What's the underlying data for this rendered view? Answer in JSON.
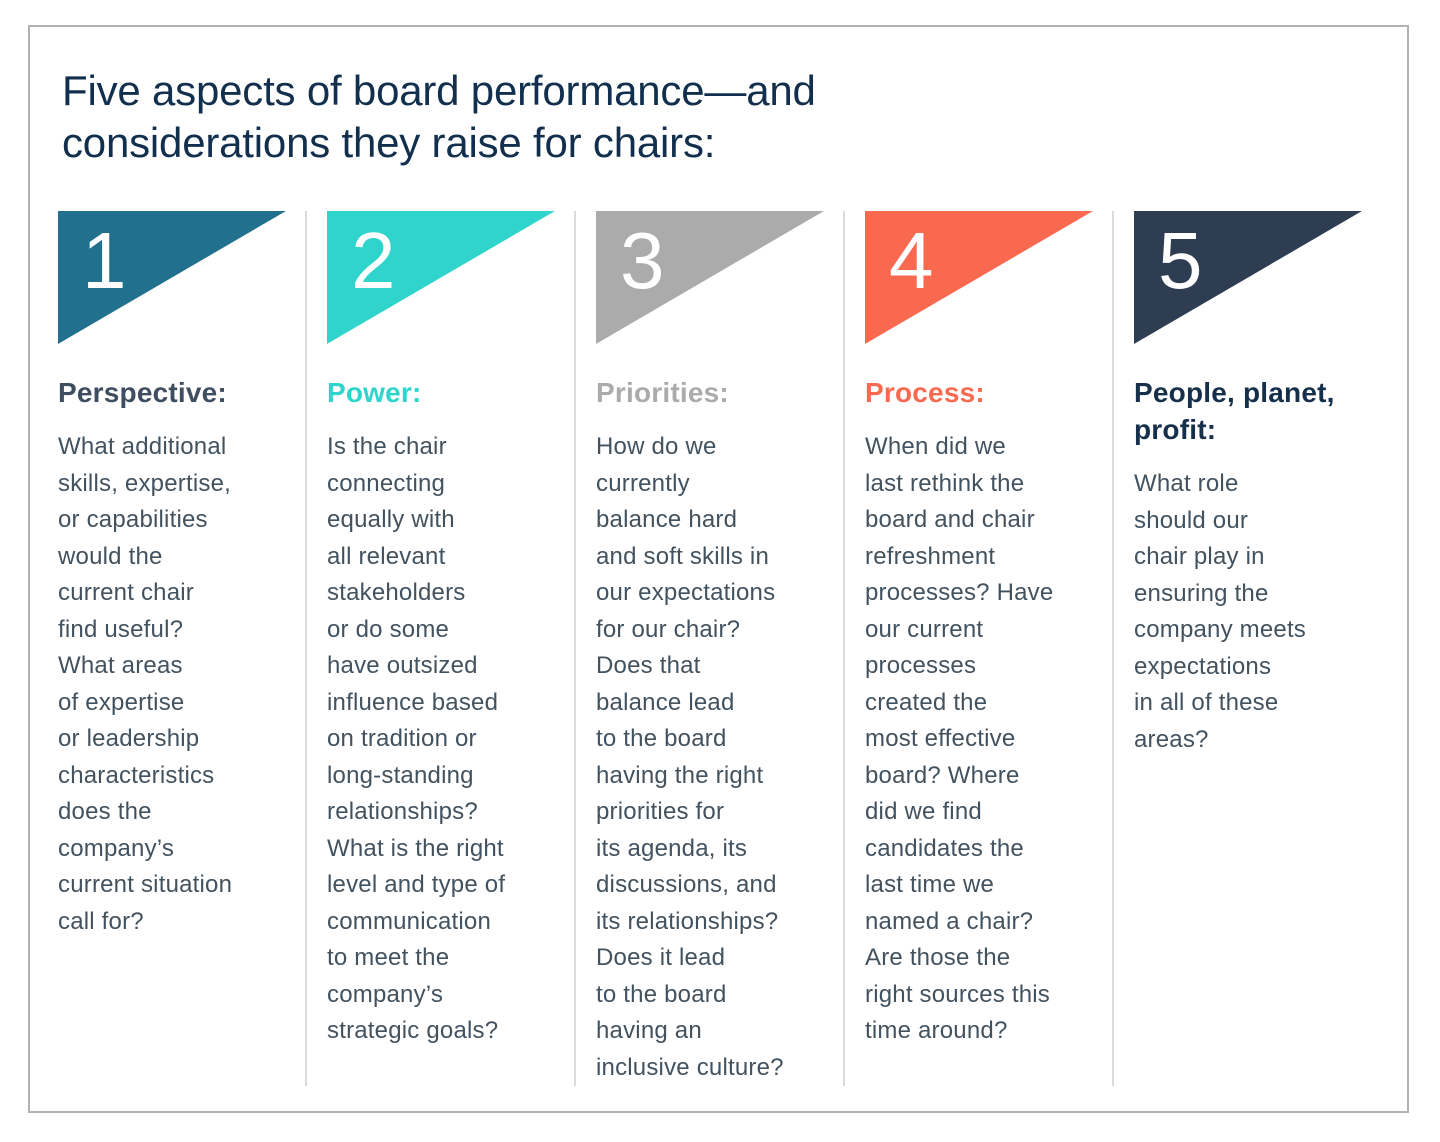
{
  "page": {
    "title": "Five aspects of board performance—and\nconsiderations they raise for chairs:",
    "title_color": "#12304d",
    "body_text_color": "#42525f",
    "card_border_color": "#afb3b6",
    "divider_color": "#d9dbdc",
    "background_color": "#ffffff"
  },
  "columns": [
    {
      "number": "1",
      "flag_color": "#20708e",
      "heading": "Perspective:",
      "heading_color": "#3e4e60",
      "body": "What additional\nskills, expertise,\nor capabilities\nwould the\ncurrent chair\nfind useful?\nWhat areas\nof expertise\nor leadership\ncharacteristics\ndoes the\ncompany’s\ncurrent situation\ncall for?"
    },
    {
      "number": "2",
      "flag_color": "#2fd5cd",
      "heading": "Power:",
      "heading_color": "#2fd5cd",
      "body": "Is the chair\nconnecting\nequally with\nall relevant\nstakeholders\nor do some\nhave outsized\ninfluence based\non tradition or\nlong-standing\nrelationships?\nWhat is the right\nlevel and type of\ncommunication\nto meet the\ncompany’s\nstrategic goals?"
    },
    {
      "number": "3",
      "flag_color": "#ababab",
      "heading": "Priorities:",
      "heading_color": "#a9abac",
      "body": "How do we\ncurrently\nbalance hard\nand soft skills in\nour expectations\nfor our chair?\nDoes that\nbalance lead\nto the board\nhaving the right\npriorities for\nits agenda, its\ndiscussions, and\nits relationships?\nDoes it lead\nto the board\nhaving an\ninclusive culture?"
    },
    {
      "number": "4",
      "flag_color": "#f9694f",
      "heading": "Process:",
      "heading_color": "#f9694f",
      "body": "When did we\nlast rethink the\nboard and chair\nrefreshment\nprocesses? Have\nour current\nprocesses\ncreated the\nmost effective\nboard? Where\ndid we find\ncandidates the\nlast time we\nnamed a chair?\nAre those the\nright sources this\ntime around?"
    },
    {
      "number": "5",
      "flag_color": "#2f3d53",
      "heading": "People, planet,\nprofit:",
      "heading_color": "#16304b",
      "body": "What role\nshould our\nchair play in\nensuring the\ncompany meets\nexpectations\nin all of these\nareas?"
    }
  ]
}
